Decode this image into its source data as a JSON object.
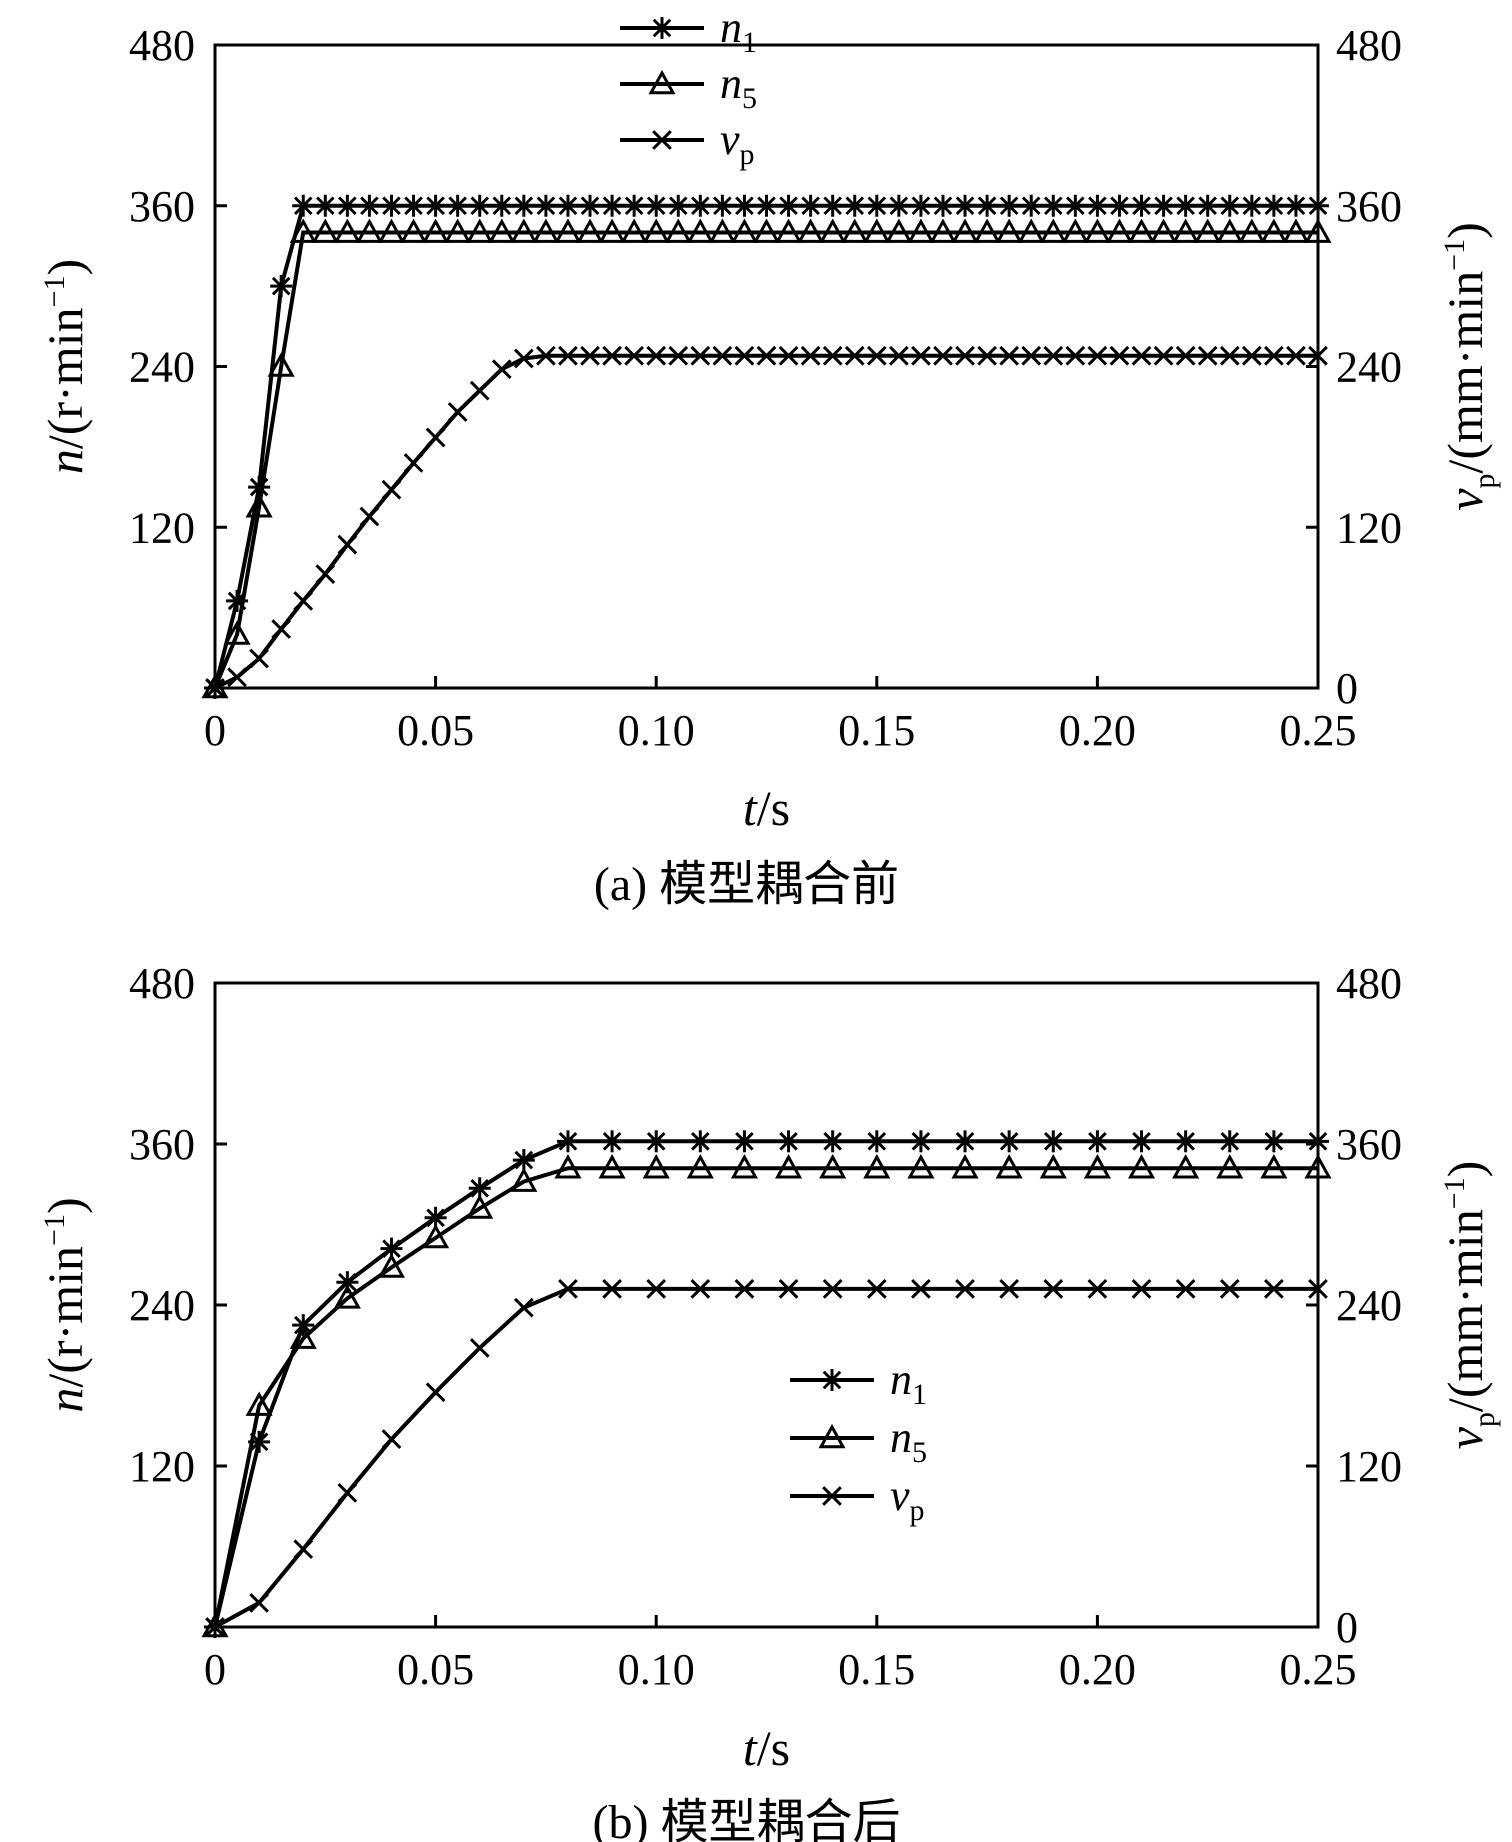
{
  "chart_data": [
    {
      "type": "line",
      "caption_letter": "(a)",
      "caption_text": "模型耦合前",
      "xlabel_var": "t",
      "xlabel_unit": "/s",
      "ylabel_left_var": "n",
      "ylabel_left_unit": "/(r·min",
      "ylabel_right_var": "v",
      "ylabel_right_sub": "p",
      "ylabel_right_unit": "/(mm·min",
      "xlim": [
        0,
        0.25
      ],
      "ylim": [
        0,
        480
      ],
      "x_ticks": [
        "0",
        "0.05",
        "0.10",
        "0.15",
        "0.20",
        "0.25"
      ],
      "y_ticks_left": [
        "480",
        "360",
        "240",
        "120"
      ],
      "y_ticks_right": [
        "480",
        "360",
        "240",
        "120",
        "0"
      ],
      "legend_position": "top-center",
      "grid": false,
      "series": [
        {
          "name": "n",
          "name_sub": "1",
          "marker": "star",
          "points": [
            [
              0,
              0
            ],
            [
              0.005,
              65
            ],
            [
              0.01,
              150
            ],
            [
              0.015,
              300
            ],
            [
              0.02,
              360
            ],
            [
              0.025,
              360
            ],
            [
              0.25,
              360
            ]
          ]
        },
        {
          "name": "n",
          "name_sub": "5",
          "marker": "triangle",
          "points": [
            [
              0,
              0
            ],
            [
              0.005,
              40
            ],
            [
              0.01,
              135
            ],
            [
              0.015,
              240
            ],
            [
              0.02,
              340
            ],
            [
              0.025,
              340
            ],
            [
              0.25,
              340
            ]
          ]
        },
        {
          "name": "v",
          "name_sub": "p",
          "marker": "x",
          "points": [
            [
              0,
              0
            ],
            [
              0.005,
              8
            ],
            [
              0.01,
              22
            ],
            [
              0.015,
              44
            ],
            [
              0.02,
              65
            ],
            [
              0.025,
              85
            ],
            [
              0.03,
              107
            ],
            [
              0.035,
              128
            ],
            [
              0.04,
              148
            ],
            [
              0.045,
              168
            ],
            [
              0.05,
              187
            ],
            [
              0.055,
              206
            ],
            [
              0.06,
              222
            ],
            [
              0.065,
              238
            ],
            [
              0.07,
              246
            ],
            [
              0.075,
              248
            ],
            [
              0.25,
              248
            ]
          ]
        }
      ]
    },
    {
      "type": "line",
      "caption_letter": "(b)",
      "caption_text": "模型耦合后",
      "xlabel_var": "t",
      "xlabel_unit": "/s",
      "ylabel_left_var": "n",
      "ylabel_left_unit": "/(r·min",
      "ylabel_right_var": "v",
      "ylabel_right_sub": "p",
      "ylabel_right_unit": "/(mm·min",
      "xlim": [
        0,
        0.25
      ],
      "ylim": [
        0,
        480
      ],
      "x_ticks": [
        "0",
        "0.05",
        "0.10",
        "0.15",
        "0.20",
        "0.25"
      ],
      "y_ticks_left": [
        "480",
        "360",
        "240",
        "120"
      ],
      "y_ticks_right": [
        "480",
        "360",
        "240",
        "120",
        "0"
      ],
      "legend_position": "center",
      "grid": false,
      "series": [
        {
          "name": "n",
          "name_sub": "1",
          "marker": "star",
          "points": [
            [
              0,
              0
            ],
            [
              0.01,
              138
            ],
            [
              0.02,
              225
            ],
            [
              0.03,
              257
            ],
            [
              0.04,
              282
            ],
            [
              0.05,
              305
            ],
            [
              0.06,
              327
            ],
            [
              0.07,
              348
            ],
            [
              0.08,
              362
            ],
            [
              0.25,
              362
            ]
          ]
        },
        {
          "name": "n",
          "name_sub": "5",
          "marker": "triangle",
          "points": [
            [
              0,
              0
            ],
            [
              0.01,
              165
            ],
            [
              0.02,
              215
            ],
            [
              0.03,
              245
            ],
            [
              0.04,
              268
            ],
            [
              0.05,
              290
            ],
            [
              0.06,
              312
            ],
            [
              0.07,
              332
            ],
            [
              0.08,
              342
            ],
            [
              0.25,
              342
            ]
          ]
        },
        {
          "name": "v",
          "name_sub": "p",
          "marker": "x",
          "points": [
            [
              0,
              0
            ],
            [
              0.01,
              18
            ],
            [
              0.02,
              58
            ],
            [
              0.03,
              100
            ],
            [
              0.04,
              140
            ],
            [
              0.05,
              175
            ],
            [
              0.06,
              208
            ],
            [
              0.07,
              238
            ],
            [
              0.08,
              252
            ],
            [
              0.25,
              252
            ]
          ]
        }
      ]
    }
  ]
}
